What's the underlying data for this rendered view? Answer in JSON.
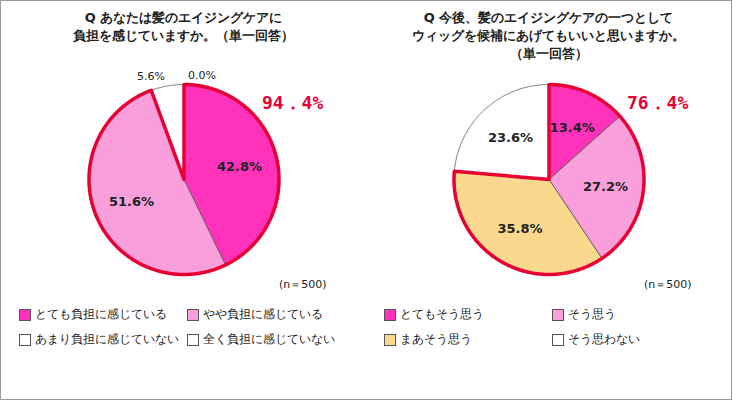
{
  "chart_data": [
    {
      "type": "pie",
      "title": "Q あなたは髪のエイジングケアに\n負担を感じていますか。（単一回答）",
      "categories": [
        "とても負担に感じている",
        "やや負担に感じている",
        "あまり負担に感じていない",
        "全く負担に感じていない"
      ],
      "values": [
        42.8,
        51.6,
        5.6,
        0.0
      ],
      "value_labels": [
        "42.8%",
        "51.6%",
        "5.6%",
        "0.0%"
      ],
      "colors": [
        "#ff33bb",
        "#f9a0dc",
        "#ffffff",
        "#ffffff"
      ],
      "data_labels": true,
      "legend": "bottom",
      "annotations": [
        {
          "text": "94．4%",
          "value": 94.4
        },
        {
          "text": "(n＝500)"
        }
      ]
    },
    {
      "type": "pie",
      "title": "Q 今後、髪のエイジングケアの一つとして\nウィッグを候補にあげてもいいと思いますか。\n（単一回答）",
      "categories": [
        "とてもそう思う",
        "そう思う",
        "まあそう思う",
        "そう思わない"
      ],
      "values": [
        13.4,
        27.2,
        35.8,
        23.6
      ],
      "value_labels": [
        "13.4%",
        "27.2%",
        "35.8%",
        "23.6%"
      ],
      "colors": [
        "#ff33bb",
        "#f9a0dc",
        "#fad98e",
        "#ffffff"
      ],
      "data_labels": true,
      "legend": "bottom",
      "annotations": [
        {
          "text": "76．4%",
          "value": 76.4
        },
        {
          "text": "(n＝500)"
        }
      ]
    }
  ]
}
